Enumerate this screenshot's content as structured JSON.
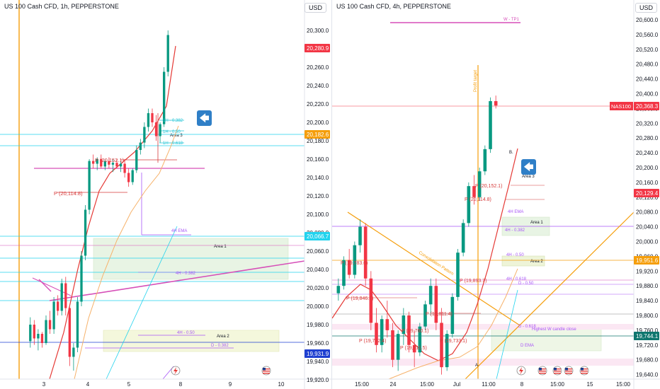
{
  "left_chart": {
    "title": "US 100 Cash CFD, 1h, PEPPERSTONE",
    "currency": "USD",
    "price_ticks": [
      "20,300.0",
      "20,280.0",
      "20,260.0",
      "20,240.0",
      "20,220.0",
      "20,200.0",
      "20,180.0",
      "20,160.0",
      "20,140.0",
      "20,120.0",
      "20,100.0",
      "20,080.0",
      "20,060.0",
      "20,040.0",
      "20,020.0",
      "20,000.0",
      "19,980.0",
      "19,960.0",
      "19,940.0",
      "19,920.0"
    ],
    "time_ticks": [
      "3",
      "4",
      "5",
      "8",
      "9",
      "10"
    ],
    "price_badges": [
      {
        "text": "20,280.9",
        "color": "#f23645"
      },
      {
        "text": "20,182.6",
        "color": "#f59e0b"
      },
      {
        "text": "20,066.7",
        "color": "#22d3ee"
      },
      {
        "text": "19,931.9",
        "color": "#1e3fd0"
      }
    ],
    "zones": [
      {
        "label": "Area 1"
      },
      {
        "label": "Area 2"
      },
      {
        "label": "Area 3"
      }
    ],
    "annotations": [
      {
        "text": "1H - 0.382",
        "color": "#22c5d6"
      },
      {
        "text": "1H - 0.50",
        "color": "#22c5d6"
      },
      {
        "text": "1H - 0.618",
        "color": "#22c5d6"
      },
      {
        "text": "4H EMA",
        "color": "#a855f7"
      },
      {
        "text": "4H - 0.382",
        "color": "#a855f7"
      },
      {
        "text": "4H - 0.50",
        "color": "#a855f7"
      },
      {
        "text": "D - 0.382",
        "color": "#a855f7"
      }
    ],
    "pivots": [
      {
        "text": "P (20,152.1)",
        "color": "#d63a3a"
      },
      {
        "text": "P (20,114.8)",
        "color": "#d63a3a"
      }
    ]
  },
  "right_chart": {
    "title": "US 100 Cash CFD, 4h, PEPPERSTONE",
    "currency": "USD",
    "price_ticks": [
      "20,600.0",
      "20,560.0",
      "20,520.0",
      "20,480.0",
      "20,440.0",
      "20,400.0",
      "20,360.0",
      "20,320.0",
      "20,280.0",
      "20,240.0",
      "20,200.0",
      "20,160.0",
      "20,120.0",
      "20,080.0",
      "20,040.0",
      "20,000.0",
      "19,960.0",
      "19,920.0",
      "19,880.0",
      "19,840.0",
      "19,800.0",
      "19,760.0",
      "19,720.0",
      "19,680.0",
      "19,640.0"
    ],
    "time_ticks": [
      "15:00",
      "24",
      "15:00",
      "Jul",
      "11:00",
      "8",
      "15:00",
      "15",
      "15:00"
    ],
    "price_badges": [
      {
        "text": "20,368.3",
        "color": "#f23645",
        "prefix": "NAS100"
      },
      {
        "text": "20,129.4",
        "color": "#f23645"
      },
      {
        "text": "19,951.6",
        "color": "#f59e0b"
      },
      {
        "text": "19,744.1",
        "color": "#0f766e"
      }
    ],
    "zones": [
      {
        "label": "Area 1"
      },
      {
        "label": "Area 2"
      },
      {
        "label": "Area 3"
      },
      {
        "label": "W - TP1"
      }
    ],
    "annotations": [
      {
        "text": "Profit target",
        "color": "#f59e0b"
      },
      {
        "text": "Consolidation Pattern",
        "color": "#f59e0b"
      },
      {
        "text": "4H EMA",
        "color": "#a855f7"
      },
      {
        "text": "4H - 0.382",
        "color": "#a855f7"
      },
      {
        "text": "4H - 0.50",
        "color": "#a855f7"
      },
      {
        "text": "4H - 0.618",
        "color": "#a855f7"
      },
      {
        "text": "D - 0.50",
        "color": "#a855f7"
      },
      {
        "text": "D - 0.618",
        "color": "#a855f7"
      },
      {
        "text": "Highest W candle close",
        "color": "#a855f7"
      },
      {
        "text": "D EMA",
        "color": "#a855f7"
      },
      {
        "text": "B.",
        "color": "#131722"
      },
      {
        "text": "A.",
        "color": "#131722"
      }
    ],
    "pivots": [
      {
        "text": "P (20,152.1)",
        "color": "#d63a3a"
      },
      {
        "text": "P (20,114.8)",
        "color": "#d63a3a"
      },
      {
        "text": "P (19,893.7)",
        "color": "#d63a3a"
      },
      {
        "text": "P (19,846.7)",
        "color": "#d63a3a"
      },
      {
        "text": "P (19,811.4)",
        "color": "#d63a3a"
      },
      {
        "text": "P (19,760.1)",
        "color": "#d63a3a"
      },
      {
        "text": "P (19,732.4)",
        "color": "#d63a3a"
      },
      {
        "text": "P (19,711.5)",
        "color": "#d63a3a"
      },
      {
        "text": "P (19,733.1)",
        "color": "#d63a3a"
      },
      {
        "text": "P (19,783.6)",
        "color": "#d63a3a"
      }
    ]
  },
  "chart_data": [
    {
      "type": "candlestick",
      "title": "US 100 Cash CFD, 1h, PEPPERSTONE",
      "ylim": [
        19910,
        20310
      ],
      "x_ticks": [
        "3",
        "4",
        "5",
        "8",
        "9",
        "10"
      ],
      "series": [
        {
          "values": [
            [
              19962,
              19988,
              19955,
              19980
            ],
            [
              19980,
              19985,
              19958,
              19965
            ],
            [
              19965,
              19975,
              19952,
              19970
            ],
            [
              19970,
              19972,
              19955,
              19960
            ],
            [
              19960,
              19990,
              19958,
              19985
            ],
            [
              19985,
              19995,
              19970,
              19975
            ],
            [
              19975,
              20010,
              19970,
              20005
            ],
            [
              20005,
              20012,
              19990,
              19995
            ],
            [
              19995,
              20030,
              19990,
              20025
            ],
            [
              20025,
              20032,
              19990,
              19998
            ],
            [
              19998,
              20000,
              19935,
              19945
            ],
            [
              19945,
              19960,
              19930,
              19955
            ],
            [
              19955,
              20010,
              19950,
              20005
            ],
            [
              20005,
              20060,
              20000,
              20055
            ],
            [
              20055,
              20110,
              20050,
              20105
            ],
            [
              20105,
              20160,
              20100,
              20158
            ],
            [
              20158,
              20165,
              20150,
              20155
            ],
            [
              20155,
              20162,
              20148,
              20160
            ],
            [
              20160,
              20165,
              20150,
              20152
            ],
            [
              20152,
              20160,
              20148,
              20158
            ],
            [
              20158,
              20162,
              20150,
              20154
            ],
            [
              20154,
              20160,
              20146,
              20156
            ],
            [
              20156,
              20160,
              20150,
              20152
            ],
            [
              20152,
              20158,
              20146,
              20155
            ],
            [
              20155,
              20160,
              20140,
              20145
            ],
            [
              20145,
              20150,
              20130,
              20135
            ],
            [
              20135,
              20150,
              20132,
              20148
            ],
            [
              20148,
              20175,
              20145,
              20170
            ],
            [
              20170,
              20182,
              20165,
              20178
            ],
            [
              20178,
              20200,
              20172,
              20195
            ],
            [
              20195,
              20215,
              20190,
              20210
            ],
            [
              20210,
              20215,
              20195,
              20200
            ],
            [
              20200,
              20208,
              20180,
              20185
            ],
            [
              20185,
              20200,
              20178,
              20198
            ],
            [
              20198,
              20260,
              20195,
              20255
            ],
            [
              20255,
              20300,
              20250,
              20295
            ]
          ]
        }
      ]
    },
    {
      "type": "candlestick",
      "title": "US 100 Cash CFD, 4h, PEPPERSTONE",
      "ylim": [
        19635,
        20605
      ],
      "x_ticks": [
        "15:00",
        "24",
        "15:00",
        "Jul",
        "11:00",
        "8",
        "15:00",
        "15",
        "15:00"
      ],
      "series": [
        {
          "values": [
            [
              19860,
              19900,
              19840,
              19880
            ],
            [
              19880,
              19960,
              19870,
              19950
            ],
            [
              19950,
              19980,
              19900,
              19910
            ],
            [
              19910,
              20000,
              19900,
              19990
            ],
            [
              19990,
              20060,
              19970,
              20040
            ],
            [
              20040,
              20050,
              19880,
              19900
            ],
            [
              19900,
              19920,
              19760,
              19780
            ],
            [
              19780,
              19820,
              19700,
              19720
            ],
            [
              19720,
              19800,
              19700,
              19790
            ],
            [
              19790,
              19840,
              19740,
              19760
            ],
            [
              19760,
              19780,
              19660,
              19680
            ],
            [
              19680,
              19760,
              19650,
              19750
            ],
            [
              19750,
              19820,
              19720,
              19800
            ],
            [
              19800,
              19810,
              19700,
              19720
            ],
            [
              19720,
              19760,
              19660,
              19700
            ],
            [
              19700,
              19780,
              19690,
              19770
            ],
            [
              19770,
              19840,
              19760,
              19830
            ],
            [
              19830,
              19900,
              19800,
              19880
            ],
            [
              19880,
              19900,
              19760,
              19780
            ],
            [
              19780,
              19820,
              19640,
              19660
            ],
            [
              19660,
              19760,
              19650,
              19750
            ],
            [
              19750,
              19860,
              19740,
              19850
            ],
            [
              19850,
              19980,
              19840,
              19970
            ],
            [
              19970,
              20060,
              19960,
              20050
            ],
            [
              20050,
              20160,
              20040,
              20150
            ],
            [
              20150,
              20180,
              20100,
              20120
            ],
            [
              20120,
              20200,
              20110,
              20190
            ],
            [
              20190,
              20260,
              20180,
              20250
            ],
            [
              20250,
              20390,
              20240,
              20380
            ],
            [
              20380,
              20395,
              20360,
              20368
            ]
          ]
        }
      ]
    }
  ]
}
